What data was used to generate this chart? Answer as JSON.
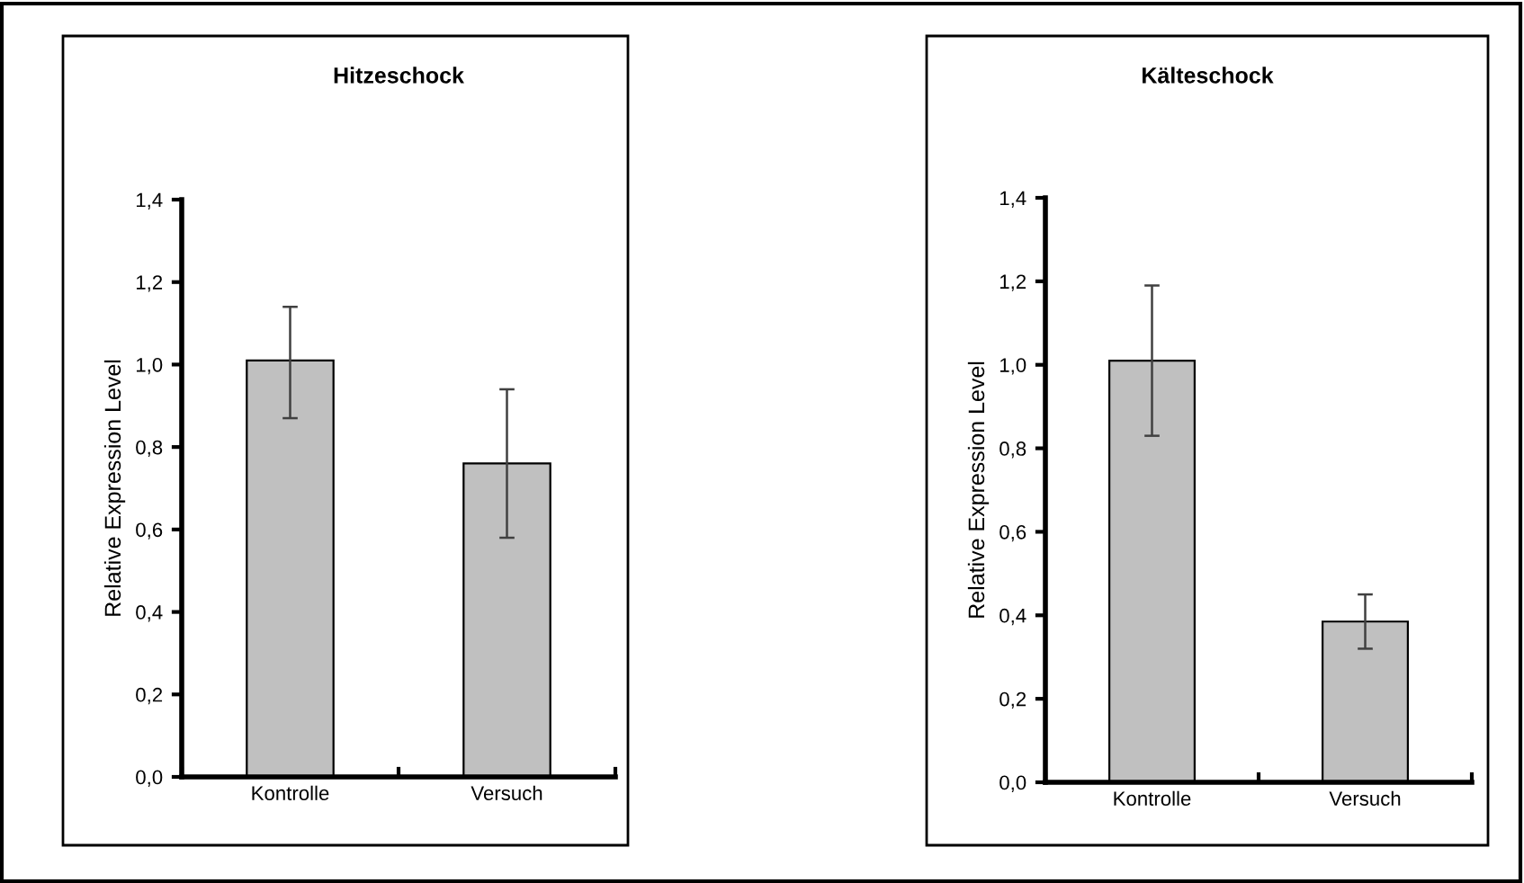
{
  "chart_data": [
    {
      "type": "bar",
      "title": "Hitzeschock",
      "ylabel": "Relative Expression Level",
      "categories": [
        "Kontrolle",
        "Versuch"
      ],
      "values": [
        1.01,
        0.76
      ],
      "errors": [
        [
          0.87,
          1.14
        ],
        [
          0.58,
          0.94
        ]
      ],
      "color": "#c0c0c0",
      "ylim": [
        0,
        1.4
      ],
      "yticks": [
        {
          "value": 0,
          "label": "0,0"
        },
        {
          "value": 0.2,
          "label": "0,2"
        },
        {
          "value": 0.4,
          "label": "0,4"
        },
        {
          "value": 0.6,
          "label": "0,6"
        },
        {
          "value": 0.8,
          "label": "0,8"
        },
        {
          "value": 1.0,
          "label": "1,0"
        },
        {
          "value": 1.2,
          "label": "1,2"
        },
        {
          "value": 1.4,
          "label": "1,4"
        }
      ],
      "grid": false,
      "legend": false
    },
    {
      "type": "bar",
      "title": "Kälteschock",
      "ylabel": "Relative Expression Level",
      "categories": [
        "Kontrolle",
        "Versuch"
      ],
      "values": [
        1.01,
        0.385
      ],
      "errors": [
        [
          0.83,
          1.19
        ],
        [
          0.32,
          0.45
        ]
      ],
      "color": "#c0c0c0",
      "ylim": [
        0,
        1.4
      ],
      "yticks": [
        {
          "value": 0,
          "label": "0,0"
        },
        {
          "value": 0.2,
          "label": "0,2"
        },
        {
          "value": 0.4,
          "label": "0,4"
        },
        {
          "value": 0.6,
          "label": "0,6"
        },
        {
          "value": 0.8,
          "label": "0,8"
        },
        {
          "value": 1.0,
          "label": "1,0"
        },
        {
          "value": 1.2,
          "label": "1,2"
        },
        {
          "value": 1.4,
          "label": "1,4"
        }
      ],
      "grid": false,
      "legend": false
    }
  ]
}
